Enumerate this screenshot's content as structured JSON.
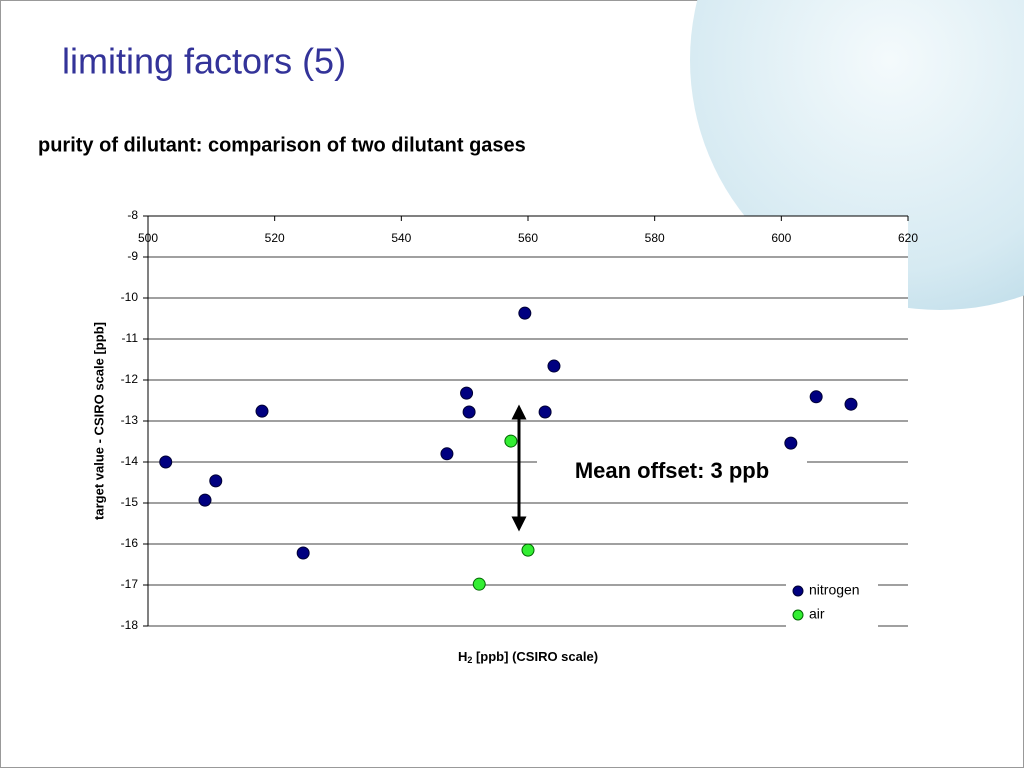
{
  "chart_data": {
    "type": "scatter",
    "title": "limiting factors (5)",
    "subtitle": "purity of dilutant: comparison of two dilutant gases",
    "x_label": {
      "main": "H",
      "sub": "2",
      "rest": " [ppb] (CSIRO scale)"
    },
    "y_label": "target value - CSIRO scale [ppb]",
    "annotation": "Mean offset: 3 ppb",
    "xlim": [
      500,
      620
    ],
    "xticks": [
      500,
      520,
      540,
      560,
      580,
      600,
      620
    ],
    "ylim": [
      -18,
      -8
    ],
    "yticks": [
      -8,
      -9,
      -10,
      -11,
      -12,
      -13,
      -14,
      -15,
      -16,
      -17,
      -18
    ],
    "grid": true,
    "legend": "lower right",
    "series": [
      {
        "name": "nitrogen",
        "color": "#000080",
        "x": [
          502.8,
          509.0,
          510.7,
          518.0,
          524.5,
          547.2,
          550.3,
          550.7,
          559.5,
          562.7,
          564.1,
          601.5,
          605.5,
          611.0
        ],
        "values": [
          -14.0,
          -14.93,
          -14.46,
          -12.76,
          -16.22,
          -13.8,
          -12.32,
          -12.78,
          -10.37,
          -12.78,
          -11.66,
          -13.54,
          -12.41,
          -12.59
        ]
      },
      {
        "name": "air",
        "color": "#33ee33",
        "x": [
          557.3,
          560.0,
          552.3
        ],
        "values": [
          -13.49,
          -16.15,
          -16.98
        ]
      }
    ]
  }
}
